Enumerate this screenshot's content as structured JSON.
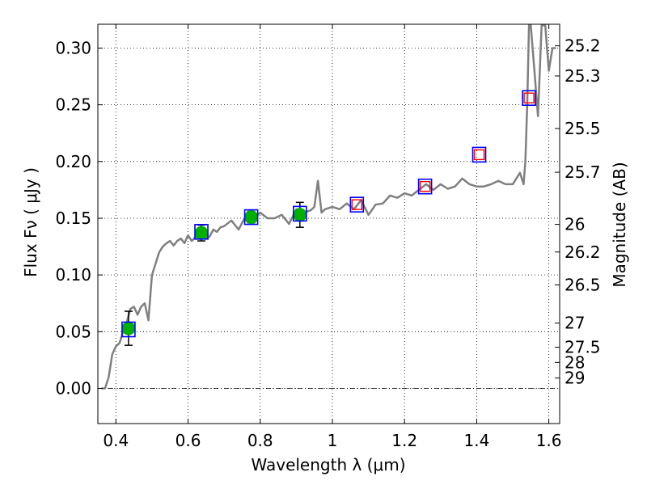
{
  "chart_data": {
    "type": "scatter",
    "xlabel": "Wavelength  λ (μm)",
    "ylabel": "Flux  Fν  ( μJy )",
    "y2label": "Magnitude (AB)",
    "xlim": [
      0.35,
      1.63
    ],
    "ylim": [
      -0.031,
      0.321
    ],
    "grid": true,
    "grid_style": "dotted",
    "x_ticks": [
      0.4,
      0.6,
      0.8,
      1.0,
      1.2,
      1.4,
      1.6
    ],
    "x_tick_labels": [
      "0.4",
      "0.6",
      "0.8",
      "1",
      "1.2",
      "1.4",
      "1.6"
    ],
    "y_ticks": [
      0.0,
      0.05,
      0.1,
      0.15,
      0.2,
      0.25,
      0.3
    ],
    "y_tick_labels": [
      "0.00",
      "0.05",
      "0.10",
      "0.15",
      "0.20",
      "0.25",
      "0.30"
    ],
    "mag_ticks": [
      "25.2",
      "25.3",
      "25.5",
      "25.7",
      "26",
      "26.2",
      "26.5",
      "27",
      "27.5",
      "28",
      "29"
    ],
    "colors": {
      "model": "#808080",
      "observed": "#00b000",
      "model_box": "#0000ff",
      "upper_box": "#ff0000",
      "zero_line": "#000000"
    },
    "series": [
      {
        "role": "model_spectrum",
        "x": [
          0.36,
          0.37,
          0.38,
          0.39,
          0.4,
          0.41,
          0.42,
          0.43,
          0.44,
          0.45,
          0.46,
          0.47,
          0.48,
          0.49,
          0.5,
          0.51,
          0.52,
          0.53,
          0.54,
          0.55,
          0.56,
          0.57,
          0.58,
          0.59,
          0.6,
          0.61,
          0.62,
          0.63,
          0.64,
          0.65,
          0.66,
          0.67,
          0.68,
          0.69,
          0.7,
          0.72,
          0.74,
          0.76,
          0.78,
          0.8,
          0.82,
          0.84,
          0.86,
          0.88,
          0.9,
          0.92,
          0.94,
          0.95,
          0.96,
          0.97,
          0.98,
          1.0,
          1.02,
          1.04,
          1.06,
          1.08,
          1.1,
          1.12,
          1.14,
          1.16,
          1.18,
          1.2,
          1.22,
          1.24,
          1.26,
          1.28,
          1.3,
          1.32,
          1.34,
          1.36,
          1.38,
          1.4,
          1.42,
          1.44,
          1.46,
          1.48,
          1.5,
          1.52,
          1.53,
          1.535,
          1.54,
          1.545,
          1.55,
          1.56,
          1.57,
          1.58,
          1.59,
          1.6,
          1.61,
          1.62
        ],
        "y": [
          0.0,
          0.0,
          0.01,
          0.03,
          0.037,
          0.04,
          0.05,
          0.058,
          0.07,
          0.072,
          0.065,
          0.072,
          0.075,
          0.06,
          0.1,
          0.11,
          0.12,
          0.125,
          0.128,
          0.13,
          0.126,
          0.13,
          0.132,
          0.128,
          0.135,
          0.13,
          0.133,
          0.135,
          0.138,
          0.132,
          0.134,
          0.14,
          0.138,
          0.142,
          0.143,
          0.148,
          0.14,
          0.152,
          0.149,
          0.155,
          0.15,
          0.15,
          0.153,
          0.145,
          0.158,
          0.155,
          0.157,
          0.16,
          0.183,
          0.155,
          0.158,
          0.16,
          0.158,
          0.163,
          0.158,
          0.166,
          0.153,
          0.162,
          0.163,
          0.17,
          0.168,
          0.172,
          0.17,
          0.175,
          0.18,
          0.175,
          0.18,
          0.176,
          0.178,
          0.185,
          0.18,
          0.178,
          0.178,
          0.18,
          0.183,
          0.18,
          0.18,
          0.19,
          0.18,
          0.2,
          0.25,
          0.32,
          0.32,
          0.28,
          0.24,
          0.32,
          0.32,
          0.28,
          0.3,
          0.3
        ]
      },
      {
        "role": "observed",
        "x": [
          0.435,
          0.637,
          0.775,
          0.91
        ],
        "y": [
          0.053,
          0.137,
          0.151,
          0.153
        ],
        "yerr": [
          0.015,
          0.007,
          0.005,
          0.011
        ]
      },
      {
        "role": "model_photometry",
        "x": [
          0.435,
          0.637,
          0.775,
          0.91,
          1.068,
          1.257,
          1.407,
          1.545
        ],
        "y": [
          0.052,
          0.138,
          0.151,
          0.154,
          0.162,
          0.178,
          0.206,
          0.256
        ]
      },
      {
        "role": "upper_photometry",
        "x": [
          1.068,
          1.257,
          1.407,
          1.545
        ],
        "y": [
          0.162,
          0.178,
          0.206,
          0.256
        ]
      }
    ]
  }
}
